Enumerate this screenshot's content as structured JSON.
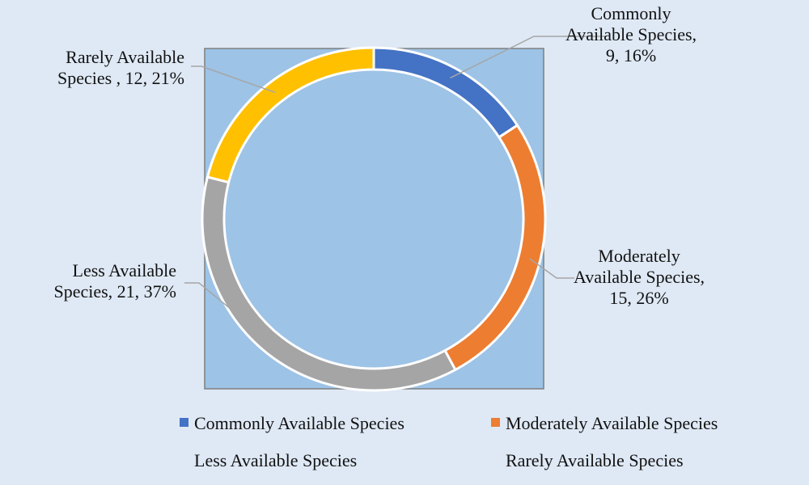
{
  "chart_data": {
    "type": "pie",
    "style": "doughnut",
    "title": "",
    "categories": [
      "Commonly Available Species",
      "Moderately Available Species",
      "Less Available Species",
      "Rarely Available Species"
    ],
    "values": [
      9,
      15,
      21,
      12
    ],
    "percentages": [
      "16%",
      "26%",
      "37%",
      "21%"
    ],
    "colors": [
      "#4472c4",
      "#ed7d31",
      "#a5a5a5",
      "#ffc000"
    ],
    "data_labels": [
      [
        "Commonly",
        "Available Species,",
        "9, 16%"
      ],
      [
        "Moderately",
        "Available Species,",
        "15, 26%"
      ],
      [
        "Less Available",
        "Species, 21, 37%"
      ],
      [
        "Rarely Available",
        "Species , 12, 21%"
      ]
    ],
    "legend_position": "bottom",
    "plot_area_color": "#9dc3e6",
    "background_color": "#dfe9f5"
  }
}
